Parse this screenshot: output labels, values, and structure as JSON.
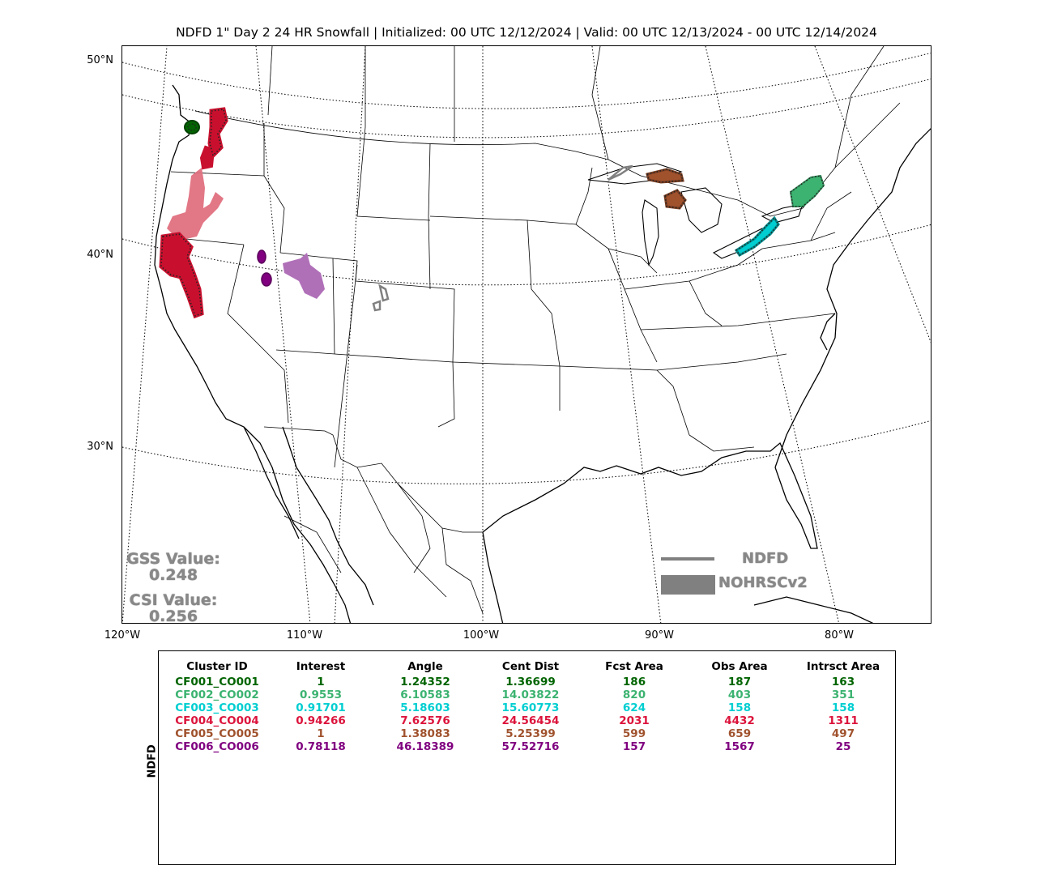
{
  "title": "NDFD 1\" Day 2 24 HR Snowfall | Initialized: 00 UTC 12/12/2024 | Valid: 00 UTC 12/13/2024 - 00 UTC 12/14/2024",
  "lat_labels": [
    "50°N",
    "40°N",
    "30°N"
  ],
  "lon_labels": [
    "120°W",
    "110°W",
    "100°W",
    "90°W",
    "80°W"
  ],
  "scores": {
    "gss_label": "GSS Value:",
    "gss_value": "0.248",
    "csi_label": "CSI Value:",
    "csi_value": "0.256"
  },
  "legend": {
    "forecast_label": "NDFD",
    "observed_label": "NOHRSCv2",
    "color": "#808080"
  },
  "table": {
    "side_label": "NDFD",
    "headers": [
      "Cluster ID",
      "Interest",
      "Angle",
      "Cent Dist",
      "Fcst Area",
      "Obs Area",
      "Intrsct Area"
    ],
    "rows": [
      {
        "color": "#006400",
        "cells": [
          "CF001_CO001",
          "1",
          "1.24352",
          "1.36699",
          "186",
          "187",
          "163"
        ]
      },
      {
        "color": "#3cb371",
        "cells": [
          "CF002_CO002",
          "0.9553",
          "6.10583",
          "14.03822",
          "820",
          "403",
          "351"
        ]
      },
      {
        "color": "#00ced1",
        "cells": [
          "CF003_CO003",
          "0.91701",
          "5.18603",
          "15.60773",
          "624",
          "158",
          "158"
        ]
      },
      {
        "color": "#dc143c",
        "cells": [
          "CF004_CO004",
          "0.94266",
          "7.62576",
          "24.56454",
          "2031",
          "4432",
          "1311"
        ]
      },
      {
        "color": "#a0522d",
        "cells": [
          "CF005_CO005",
          "1",
          "1.38083",
          "5.25399",
          "599",
          "659",
          "497"
        ]
      },
      {
        "color": "#800080",
        "cells": [
          "CF006_CO006",
          "0.78118",
          "46.18389",
          "57.52716",
          "157",
          "1567",
          "25"
        ]
      }
    ]
  }
}
